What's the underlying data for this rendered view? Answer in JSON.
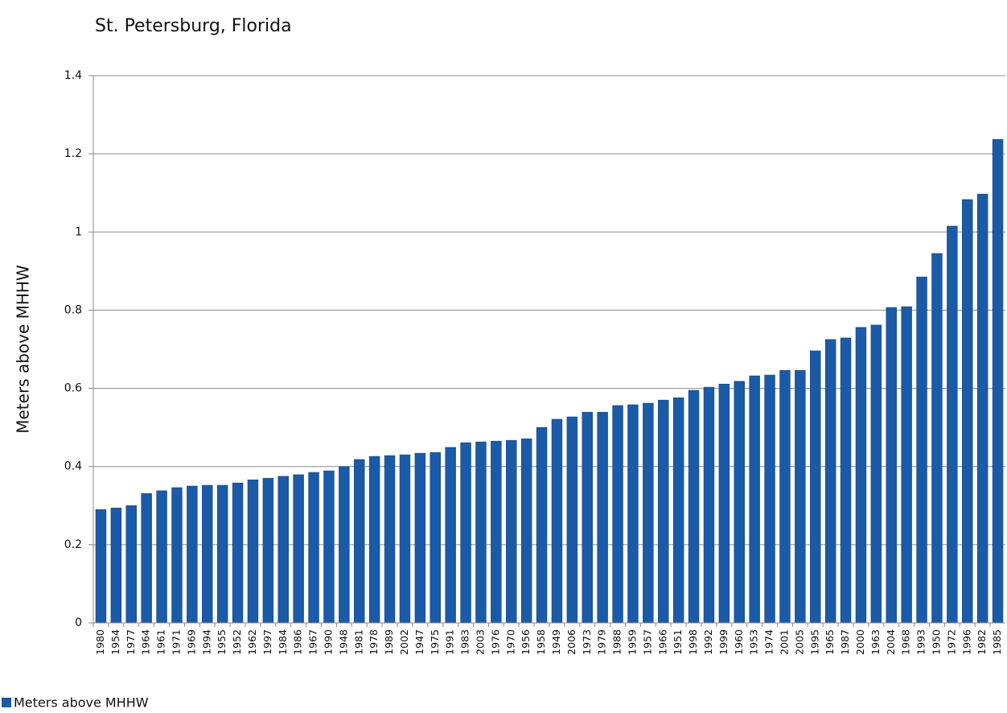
{
  "chart_data": {
    "type": "bar",
    "title": "St. Petersburg, Florida",
    "y_label": "Meters above MHHW",
    "categories": [
      "1980",
      "1954",
      "1977",
      "1964",
      "1961",
      "1971",
      "1969",
      "1994",
      "1955",
      "1952",
      "1962",
      "1997",
      "1984",
      "1986",
      "1967",
      "1990",
      "1948",
      "1981",
      "1978",
      "1989",
      "2002",
      "1947",
      "1975",
      "1991",
      "1983",
      "2003",
      "1976",
      "1970",
      "1956",
      "1958",
      "1949",
      "2006",
      "1973",
      "1979",
      "1988",
      "1959",
      "1957",
      "1966",
      "1951",
      "1998",
      "1992",
      "1999",
      "1960",
      "1953",
      "1974",
      "2001",
      "2005",
      "1995",
      "1965",
      "1987",
      "2000",
      "1963",
      "2004",
      "1968",
      "1993",
      "1950",
      "1972",
      "1996",
      "1982",
      "1985"
    ],
    "series": [
      {
        "name": "Meters above MHHW",
        "color": "#1b5aa6",
        "values": [
          0.29,
          0.294,
          0.3,
          0.331,
          0.338,
          0.346,
          0.35,
          0.352,
          0.352,
          0.358,
          0.366,
          0.37,
          0.375,
          0.379,
          0.385,
          0.389,
          0.4,
          0.418,
          0.426,
          0.428,
          0.43,
          0.434,
          0.436,
          0.449,
          0.461,
          0.463,
          0.465,
          0.467,
          0.471,
          0.5,
          0.521,
          0.527,
          0.539,
          0.539,
          0.556,
          0.558,
          0.562,
          0.57,
          0.576,
          0.595,
          0.603,
          0.611,
          0.618,
          0.632,
          0.634,
          0.646,
          0.646,
          0.696,
          0.725,
          0.729,
          0.756,
          0.762,
          0.807,
          0.809,
          0.885,
          0.945,
          1.015,
          1.083,
          1.097,
          1.237
        ]
      }
    ],
    "ylim": [
      0,
      1.4
    ],
    "yticks": [
      0,
      0.2,
      0.4,
      0.6,
      0.8,
      1,
      1.2,
      1.4
    ],
    "grid": true,
    "legend": "bottom-left"
  }
}
